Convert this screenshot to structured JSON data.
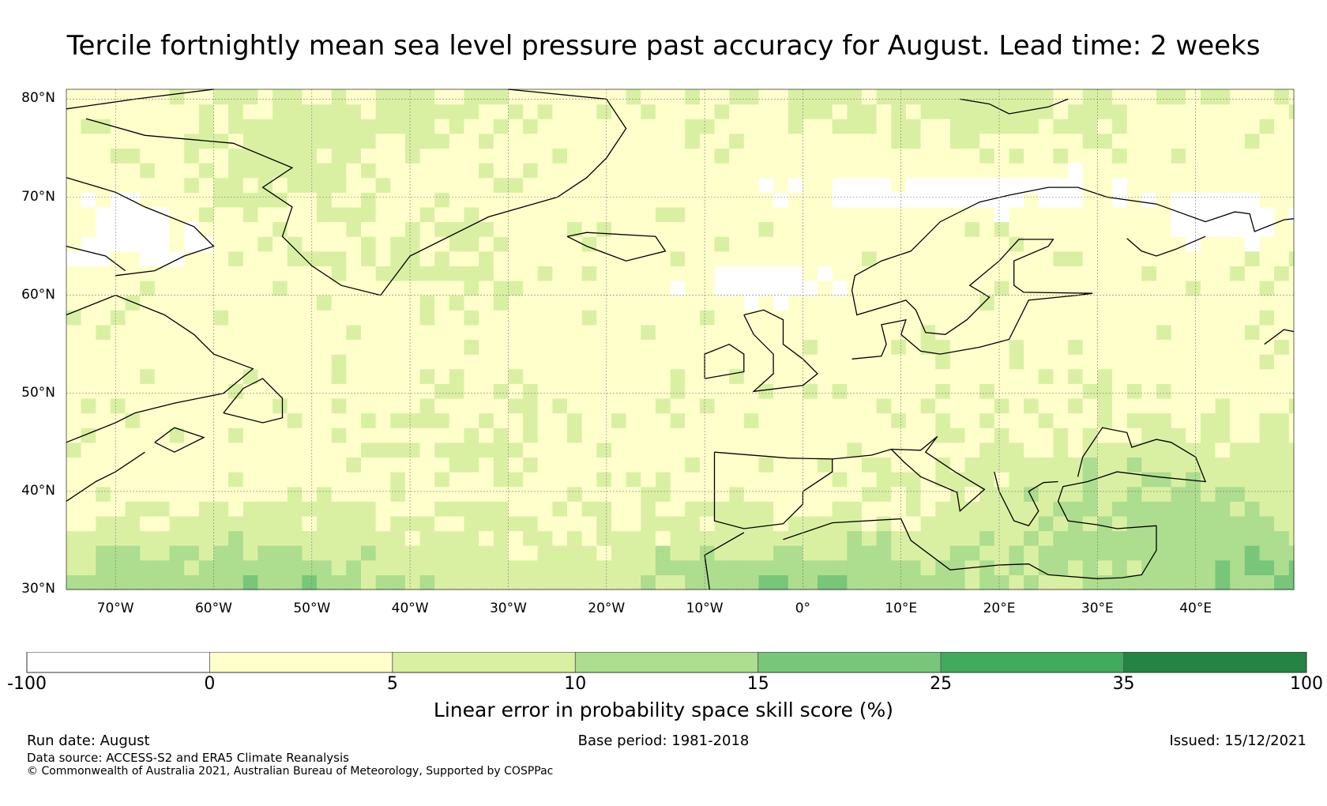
{
  "title": "Tercile fortnightly mean sea level pressure past accuracy for August. Lead time: 2 weeks",
  "map": {
    "lat_ticks": [
      {
        "value": 80,
        "label": "80°N"
      },
      {
        "value": 70,
        "label": "70°N"
      },
      {
        "value": 60,
        "label": "60°N"
      },
      {
        "value": 50,
        "label": "50°N"
      },
      {
        "value": 40,
        "label": "40°N"
      },
      {
        "value": 30,
        "label": "30°N"
      }
    ],
    "lon_ticks": [
      {
        "value": -70,
        "label": "70°W"
      },
      {
        "value": -60,
        "label": "60°W"
      },
      {
        "value": -50,
        "label": "50°W"
      },
      {
        "value": -40,
        "label": "40°W"
      },
      {
        "value": -30,
        "label": "30°W"
      },
      {
        "value": -20,
        "label": "20°W"
      },
      {
        "value": -10,
        "label": "10°W"
      },
      {
        "value": 0,
        "label": "0°"
      },
      {
        "value": 10,
        "label": "10°E"
      },
      {
        "value": 20,
        "label": "20°E"
      },
      {
        "value": 30,
        "label": "30°E"
      },
      {
        "value": 40,
        "label": "40°E"
      }
    ],
    "extent": {
      "lon_min": -75,
      "lon_max": 50,
      "lat_min": 30,
      "lat_max": 81
    }
  },
  "colorbar": {
    "title": "Linear error in probability space skill score (%)",
    "bins": [
      {
        "from": "-100",
        "to": "0",
        "color": "#ffffff"
      },
      {
        "from": "0",
        "to": "5",
        "color": "#ffffcc"
      },
      {
        "from": "5",
        "to": "10",
        "color": "#d9f0a3"
      },
      {
        "from": "10",
        "to": "15",
        "color": "#addd8e"
      },
      {
        "from": "15",
        "to": "25",
        "color": "#78c679"
      },
      {
        "from": "25",
        "to": "35",
        "color": "#41ab5d"
      },
      {
        "from": "35",
        "to": "100",
        "color": "#238443"
      }
    ],
    "tick_labels": [
      "-100",
      "0",
      "5",
      "10",
      "15",
      "25",
      "35",
      "100"
    ]
  },
  "footer": {
    "run_date": "Run date: August",
    "base_period": "Base period: 1981-2018",
    "issued": "Issued: 15/12/2021",
    "data_source": "Data source: ACCESS-S2 and ERA5 Climate Reanalysis",
    "copyright": "© Commonwealth of Australia 2021, Australian Bureau of Meteorology, Supported by COSPPac"
  }
}
